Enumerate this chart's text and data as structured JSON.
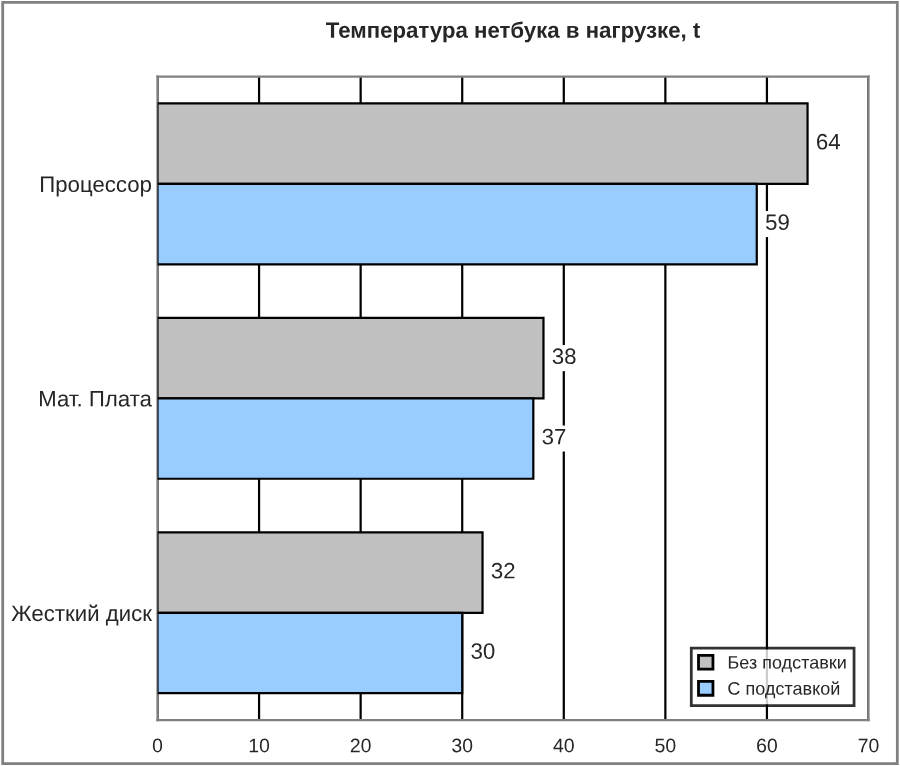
{
  "chart_data": {
    "type": "bar",
    "orientation": "horizontal",
    "title": "Температура нетбука в нагрузке, t",
    "categories": [
      "Процессор",
      "Мат. Плата",
      "Жесткий диск"
    ],
    "series": [
      {
        "name": "Без подставки",
        "color": "#c0c0c0",
        "values": [
          64,
          38,
          32
        ]
      },
      {
        "name": "С подставкой",
        "color": "#99ccff",
        "values": [
          59,
          37,
          30
        ]
      }
    ],
    "xlim": [
      0,
      70
    ],
    "xticks": [
      0,
      10,
      20,
      30,
      40,
      50,
      60,
      70
    ],
    "grid": "x",
    "legend": "bottom right",
    "data_labels": true
  }
}
